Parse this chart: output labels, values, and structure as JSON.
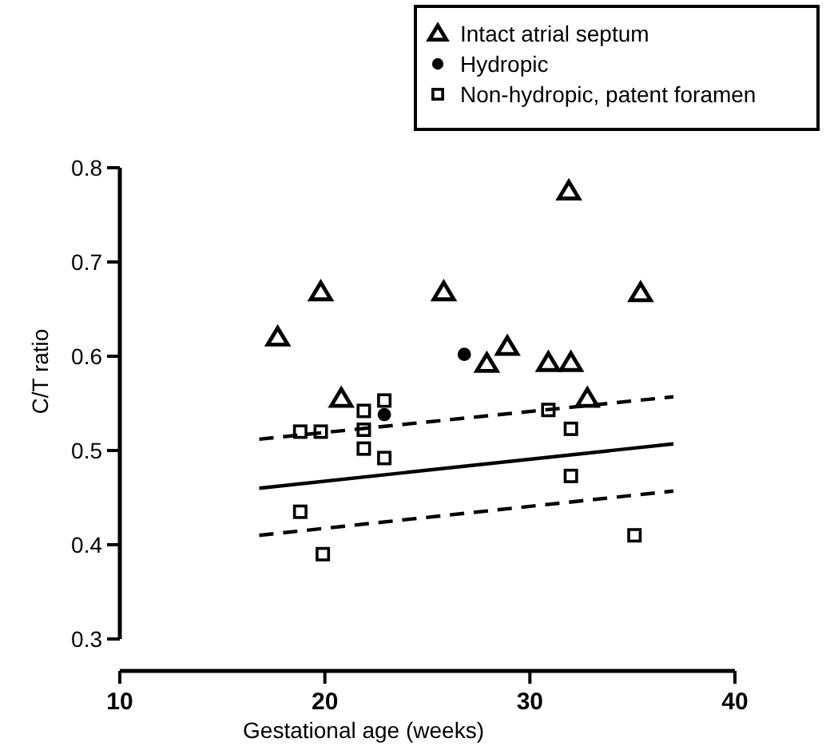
{
  "chart_data": {
    "type": "scatter",
    "xlabel": "Gestational age (weeks)",
    "ylabel": "C/T ratio",
    "xlim": [
      10,
      40
    ],
    "xticks": [
      10,
      20,
      30,
      40
    ],
    "ylim": [
      0.3,
      0.8
    ],
    "yticks": [
      0.3,
      0.4,
      0.5,
      0.6,
      0.7,
      0.8
    ],
    "legend": "top right",
    "grid": false,
    "series": [
      {
        "name": "Intact atrial septum",
        "color": "#000000",
        "marker": "triangle",
        "x": [
          17.7,
          19.8,
          20.8,
          25.8,
          27.9,
          28.9,
          30.9,
          31.9,
          32,
          32.8,
          35.4
        ],
        "values": [
          0.62,
          0.668,
          0.555,
          0.668,
          0.592,
          0.61,
          0.593,
          0.775,
          0.593,
          0.555,
          0.667
        ]
      },
      {
        "name": "Hydropic",
        "color": "#000000",
        "marker": "circle",
        "x": [
          22.9,
          26.8
        ],
        "values": [
          0.538,
          0.602
        ]
      },
      {
        "name": "Non-hydropic, patent foramen",
        "color": "#000000",
        "marker": "square",
        "x": [
          18.8,
          19.8,
          21.9,
          21.9,
          21.9,
          22.9,
          18.8,
          19.9,
          22.9,
          30.9,
          32,
          32,
          35.1
        ],
        "values": [
          0.52,
          0.52,
          0.542,
          0.522,
          0.502,
          0.492,
          0.435,
          0.39,
          0.553,
          0.543,
          0.523,
          0.473,
          0.41
        ]
      },
      {
        "type": "line",
        "color": "#000000",
        "marker": "none",
        "line_style": "solid",
        "x": [
          16.8,
          37
        ],
        "values": [
          0.46,
          0.507
        ]
      },
      {
        "type": "line",
        "color": "#000000",
        "marker": "none",
        "line_style": "dashed",
        "x": [
          16.8,
          37
        ],
        "values": [
          0.512,
          0.557
        ]
      },
      {
        "type": "line",
        "color": "#000000",
        "marker": "none",
        "line_style": "dashed",
        "x": [
          16.8,
          37
        ],
        "values": [
          0.41,
          0.457
        ]
      }
    ]
  }
}
